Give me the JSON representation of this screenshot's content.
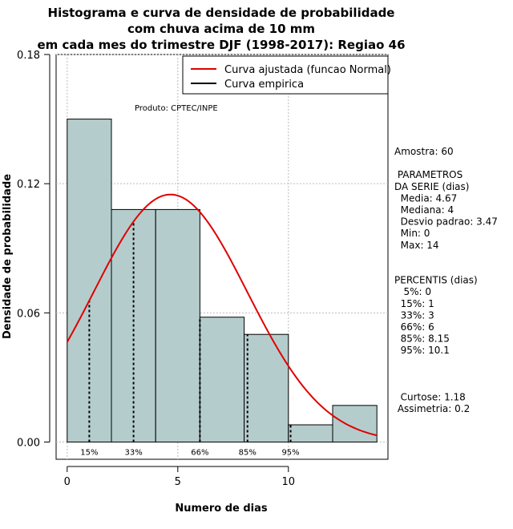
{
  "chart_data": {
    "type": "bar",
    "title_lines": [
      "Histograma e curva de densidade de probabilidade",
      "com chuva acima de 10 mm",
      "em cada mes do trimestre DJF (1998-2017): Regiao 46"
    ],
    "xlabel": "Numero de dias",
    "ylabel": "Densidade de probabilidade",
    "xlim": [
      -0.5,
      14.5
    ],
    "ylim": [
      -0.008,
      0.18
    ],
    "x_ticks": [
      0,
      5,
      10
    ],
    "y_ticks": [
      0.0,
      0.06,
      0.12,
      0.18
    ],
    "y_tick_labels": [
      "0.00",
      "0.06",
      "0.12",
      "0.18"
    ],
    "grid": true,
    "bar_color": "#b5cccc",
    "curve_color": "#e00000",
    "bins": [
      {
        "x0": 0,
        "x1": 2,
        "density": 0.15
      },
      {
        "x0": 2,
        "x1": 4,
        "density": 0.108
      },
      {
        "x0": 4,
        "x1": 6,
        "density": 0.108
      },
      {
        "x0": 6,
        "x1": 8,
        "density": 0.058
      },
      {
        "x0": 8,
        "x1": 10,
        "density": 0.05
      },
      {
        "x0": 10,
        "x1": 12,
        "density": 0.008
      },
      {
        "x0": 12,
        "x1": 14,
        "density": 0.017
      }
    ],
    "normal_fit": {
      "mean": 4.67,
      "sd": 3.47,
      "x_range": [
        0,
        14
      ]
    },
    "percentile_lines": [
      {
        "label": "15%",
        "x": 1
      },
      {
        "label": "33%",
        "x": 3
      },
      {
        "label": "66%",
        "x": 6
      },
      {
        "label": "85%",
        "x": 8.15
      },
      {
        "label": "95%",
        "x": 10.1
      }
    ],
    "legend": {
      "placement": "top-right",
      "items": [
        {
          "label": "Curva ajustada (funcao Normal)",
          "color": "#e00000"
        },
        {
          "label": "Curva empirica",
          "color": "#000000"
        }
      ]
    },
    "annotation": "Produto: CPTEC/INPE"
  },
  "side_panel": {
    "lines": [
      "Amostra: 60",
      "",
      " PARAMETROS",
      "DA SERIE (dias)",
      "  Media: 4.67",
      "  Mediana: 4",
      "  Desvio padrao: 3.47",
      "  Min: 0",
      "  Max: 14",
      "",
      "",
      "PERCENTIS (dias)",
      "   5%: 0",
      "  15%: 1",
      "  33%: 3",
      "  66%: 6",
      "  85%: 8.15",
      "  95%: 10.1",
      "",
      "",
      "",
      "  Curtose: 1.18",
      " Assimetria: 0.2"
    ]
  }
}
